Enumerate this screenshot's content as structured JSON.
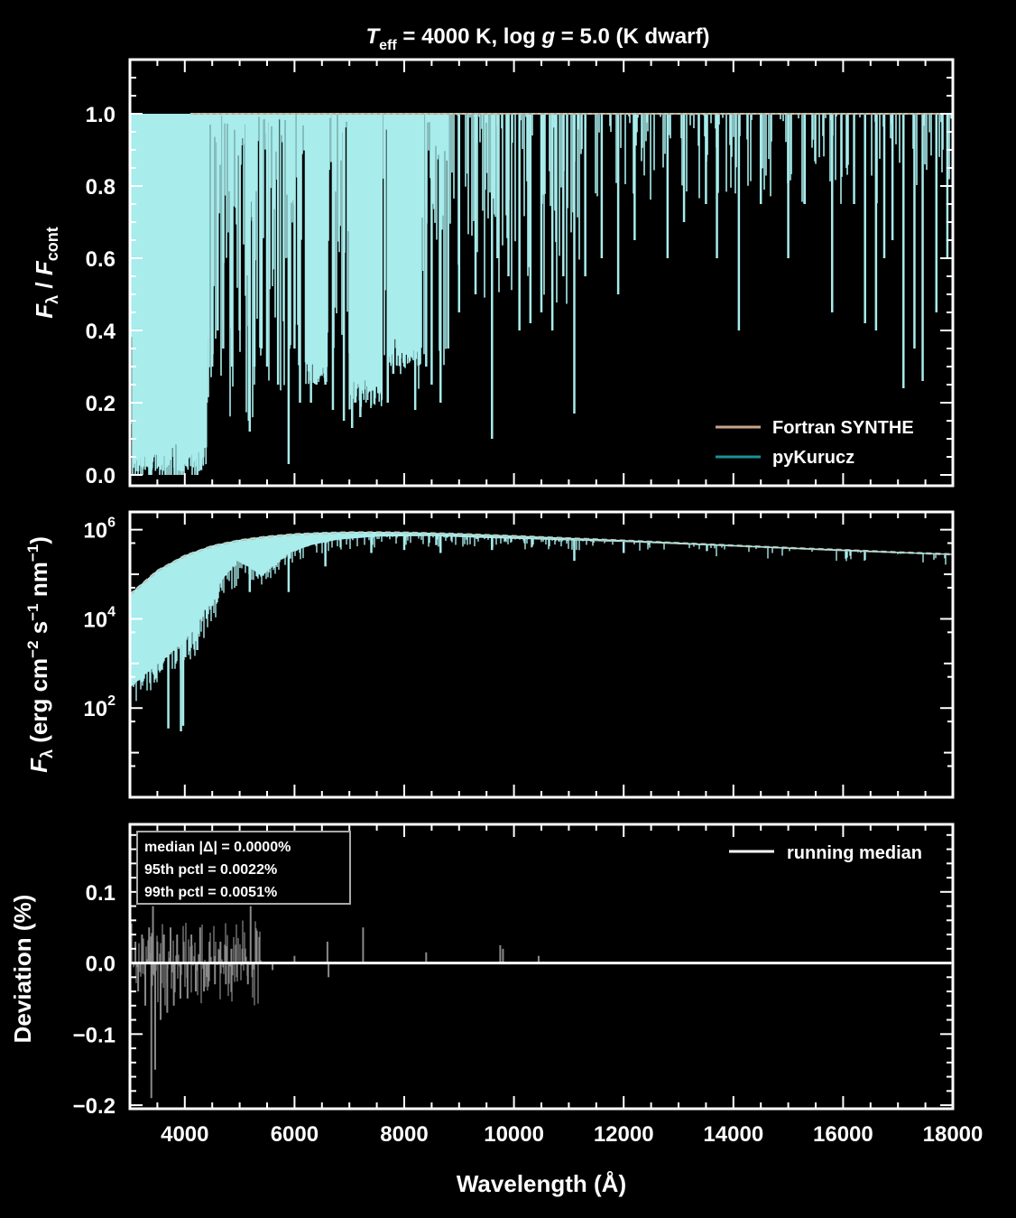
{
  "chart_data": [
    {
      "type": "line",
      "title": "T_eff = 4000 K,  log g = 5.0 (K dwarf)",
      "title_parts": {
        "t_sym": "T",
        "t_sub": "eff",
        "eq1": " = 4000 K,  log ",
        "g_sym": "g",
        "eq2": " = 5.0 (K dwarf)"
      },
      "xlabel": "",
      "ylabel": "Fλ / Fcont",
      "ylabel_parts": {
        "f1": "F",
        "lam1": "λ",
        "slash": " / ",
        "f2": "F",
        "cont": "cont"
      },
      "xlim": [
        3000,
        18000
      ],
      "ylim": [
        -0.03,
        1.15
      ],
      "yticks": [
        {
          "v": 0.0,
          "label": "0.0"
        },
        {
          "v": 0.2,
          "label": "0.2"
        },
        {
          "v": 0.4,
          "label": "0.4"
        },
        {
          "v": 0.6,
          "label": "0.6"
        },
        {
          "v": 0.8,
          "label": "0.8"
        },
        {
          "v": 1.0,
          "label": "1.0"
        }
      ],
      "legend_position": "lower-right",
      "series": [
        {
          "name": "Fortran SYNTHE",
          "color": "#c9a48c"
        },
        {
          "name": "pyKurucz",
          "color": "#1f8f99"
        }
      ],
      "fill_color": "#a8ecec",
      "continuum": 1.0,
      "deep_lines": [
        {
          "x": 3060,
          "y": 0.02
        },
        {
          "x": 3150,
          "y": 0.01
        },
        {
          "x": 3250,
          "y": 0.05
        },
        {
          "x": 3400,
          "y": 0.02
        },
        {
          "x": 3520,
          "y": 0.03
        },
        {
          "x": 3650,
          "y": 0.02
        },
        {
          "x": 3700,
          "y": 0.4
        },
        {
          "x": 3800,
          "y": 0.05
        },
        {
          "x": 3934,
          "y": 0.01
        },
        {
          "x": 3968,
          "y": 0.01
        },
        {
          "x": 4100,
          "y": 0.05
        },
        {
          "x": 4227,
          "y": 0.0
        },
        {
          "x": 4300,
          "y": 0.03
        },
        {
          "x": 4400,
          "y": 0.2
        },
        {
          "x": 4500,
          "y": 0.3
        },
        {
          "x": 4600,
          "y": 0.4
        },
        {
          "x": 4700,
          "y": 0.35
        },
        {
          "x": 4861,
          "y": 0.3
        },
        {
          "x": 5000,
          "y": 0.4
        },
        {
          "x": 5167,
          "y": 0.15
        },
        {
          "x": 5184,
          "y": 0.12
        },
        {
          "x": 5270,
          "y": 0.3
        },
        {
          "x": 5400,
          "y": 0.35
        },
        {
          "x": 5500,
          "y": 0.3
        },
        {
          "x": 5700,
          "y": 0.25
        },
        {
          "x": 5893,
          "y": 0.03
        },
        {
          "x": 6000,
          "y": 0.35
        },
        {
          "x": 6100,
          "y": 0.2
        },
        {
          "x": 6300,
          "y": 0.2
        },
        {
          "x": 6400,
          "y": 0.25
        },
        {
          "x": 6563,
          "y": 0.25
        },
        {
          "x": 6700,
          "y": 0.18
        },
        {
          "x": 6900,
          "y": 0.15
        },
        {
          "x": 7050,
          "y": 0.13
        },
        {
          "x": 7200,
          "y": 0.16
        },
        {
          "x": 7400,
          "y": 0.25
        },
        {
          "x": 7500,
          "y": 0.25
        },
        {
          "x": 7700,
          "y": 0.2
        },
        {
          "x": 7800,
          "y": 0.28
        },
        {
          "x": 8000,
          "y": 0.3
        },
        {
          "x": 8200,
          "y": 0.18
        },
        {
          "x": 8400,
          "y": 0.3
        },
        {
          "x": 8500,
          "y": 0.25
        },
        {
          "x": 8662,
          "y": 0.2
        },
        {
          "x": 8800,
          "y": 0.35
        },
        {
          "x": 9000,
          "y": 0.45
        },
        {
          "x": 9300,
          "y": 0.5
        },
        {
          "x": 9600,
          "y": 0.1
        },
        {
          "x": 9700,
          "y": 0.6
        },
        {
          "x": 9900,
          "y": 0.55
        },
        {
          "x": 10100,
          "y": 0.4
        },
        {
          "x": 10300,
          "y": 0.42
        },
        {
          "x": 10500,
          "y": 0.45
        },
        {
          "x": 10700,
          "y": 0.4
        },
        {
          "x": 10900,
          "y": 0.55
        },
        {
          "x": 11100,
          "y": 0.17
        },
        {
          "x": 11300,
          "y": 0.55
        },
        {
          "x": 11600,
          "y": 0.6
        },
        {
          "x": 11900,
          "y": 0.5
        },
        {
          "x": 12200,
          "y": 0.65
        },
        {
          "x": 12800,
          "y": 0.6
        },
        {
          "x": 13100,
          "y": 0.7
        },
        {
          "x": 13500,
          "y": 0.75
        },
        {
          "x": 13700,
          "y": 0.6
        },
        {
          "x": 14100,
          "y": 0.4
        },
        {
          "x": 14500,
          "y": 0.75
        },
        {
          "x": 15000,
          "y": 0.6
        },
        {
          "x": 15300,
          "y": 0.75
        },
        {
          "x": 15800,
          "y": 0.45
        },
        {
          "x": 16200,
          "y": 0.75
        },
        {
          "x": 16400,
          "y": 0.42
        },
        {
          "x": 16600,
          "y": 0.4
        },
        {
          "x": 16750,
          "y": 0.6
        },
        {
          "x": 16900,
          "y": 0.65
        },
        {
          "x": 17100,
          "y": 0.24
        },
        {
          "x": 17300,
          "y": 0.35
        },
        {
          "x": 17450,
          "y": 0.26
        },
        {
          "x": 17700,
          "y": 0.45
        },
        {
          "x": 17900,
          "y": 0.6
        }
      ]
    },
    {
      "type": "line",
      "title": "",
      "xlabel": "",
      "ylabel": "Fλ (erg cm−2 s−1 nm−1)",
      "ylabel_parts": {
        "f": "F",
        "lam": "λ",
        "u1": " (erg cm",
        "e1": "−2",
        "u2": " s",
        "e2": "−1",
        "u3": " nm",
        "e3": "−1",
        "u4": ")"
      },
      "xlim": [
        3000,
        18000
      ],
      "ylim": [
        1,
        2500000
      ],
      "yscale": "log",
      "yticks": [
        {
          "v": 100,
          "base": "10",
          "exp": "2"
        },
        {
          "v": 10000,
          "base": "10",
          "exp": "4"
        },
        {
          "v": 1000000,
          "base": "10",
          "exp": "6"
        }
      ],
      "series": [
        {
          "name": "Fortran SYNTHE",
          "color": "#c9a48c"
        },
        {
          "name": "pyKurucz",
          "color": "#1f8f99"
        }
      ],
      "fill_color": "#a8ecec",
      "continuum": [
        {
          "x": 3000,
          "y": 35000
        },
        {
          "x": 3500,
          "y": 120000
        },
        {
          "x": 4000,
          "y": 260000
        },
        {
          "x": 4500,
          "y": 430000
        },
        {
          "x": 5000,
          "y": 580000
        },
        {
          "x": 5500,
          "y": 700000
        },
        {
          "x": 6000,
          "y": 790000
        },
        {
          "x": 6500,
          "y": 840000
        },
        {
          "x": 7000,
          "y": 870000
        },
        {
          "x": 7500,
          "y": 870000
        },
        {
          "x": 8000,
          "y": 860000
        },
        {
          "x": 9000,
          "y": 800000
        },
        {
          "x": 10000,
          "y": 720000
        },
        {
          "x": 11000,
          "y": 640000
        },
        {
          "x": 12000,
          "y": 570000
        },
        {
          "x": 13000,
          "y": 500000
        },
        {
          "x": 14000,
          "y": 440000
        },
        {
          "x": 15000,
          "y": 390000
        },
        {
          "x": 16000,
          "y": 350000
        },
        {
          "x": 17000,
          "y": 310000
        },
        {
          "x": 18000,
          "y": 280000
        }
      ],
      "lower_envelope": [
        {
          "x": 3000,
          "y": 2
        },
        {
          "x": 3020,
          "y": 300
        },
        {
          "x": 3300,
          "y": 600
        },
        {
          "x": 3600,
          "y": 1200
        },
        {
          "x": 3900,
          "y": 2600
        },
        {
          "x": 4200,
          "y": 6000
        },
        {
          "x": 4400,
          "y": 20000
        },
        {
          "x": 4700,
          "y": 80000
        },
        {
          "x": 4950,
          "y": 200000
        },
        {
          "x": 5200,
          "y": 140000
        },
        {
          "x": 5400,
          "y": 90000
        },
        {
          "x": 5600,
          "y": 150000
        },
        {
          "x": 5900,
          "y": 300000
        },
        {
          "x": 6300,
          "y": 450000
        },
        {
          "x": 6800,
          "y": 600000
        },
        {
          "x": 7500,
          "y": 700000
        },
        {
          "x": 8500,
          "y": 720000
        },
        {
          "x": 9500,
          "y": 650000
        },
        {
          "x": 10500,
          "y": 600000
        },
        {
          "x": 12000,
          "y": 530000
        },
        {
          "x": 14000,
          "y": 420000
        },
        {
          "x": 16000,
          "y": 330000
        },
        {
          "x": 18000,
          "y": 270000
        }
      ],
      "deep_lines": [
        {
          "x": 3700,
          "y": 35
        },
        {
          "x": 3930,
          "y": 30
        },
        {
          "x": 3970,
          "y": 40
        },
        {
          "x": 4227,
          "y": 2000
        },
        {
          "x": 4400,
          "y": 10000
        },
        {
          "x": 5184,
          "y": 40000
        },
        {
          "x": 5893,
          "y": 40000
        },
        {
          "x": 6563,
          "y": 150000
        },
        {
          "x": 7400,
          "y": 300000
        },
        {
          "x": 8000,
          "y": 350000
        },
        {
          "x": 8662,
          "y": 300000
        },
        {
          "x": 9600,
          "y": 350000
        },
        {
          "x": 11100,
          "y": 200000
        },
        {
          "x": 12000,
          "y": 300000
        }
      ]
    },
    {
      "type": "line",
      "title": "",
      "xlabel": "Wavelength (Å)",
      "ylabel": "Deviation (%)",
      "xlim": [
        3000,
        18000
      ],
      "ylim": [
        -0.205,
        0.195
      ],
      "xticks": [
        {
          "v": 4000,
          "label": "4000"
        },
        {
          "v": 6000,
          "label": "6000"
        },
        {
          "v": 8000,
          "label": "8000"
        },
        {
          "v": 10000,
          "label": "10000"
        },
        {
          "v": 12000,
          "label": "12000"
        },
        {
          "v": 14000,
          "label": "14000"
        },
        {
          "v": 16000,
          "label": "16000"
        },
        {
          "v": 18000,
          "label": "18000"
        }
      ],
      "yticks": [
        {
          "v": -0.2,
          "label": "−0.2"
        },
        {
          "v": -0.1,
          "label": "−0.1"
        },
        {
          "v": 0.0,
          "label": "0.0"
        },
        {
          "v": 0.1,
          "label": "0.1"
        }
      ],
      "legend_position": "top-right",
      "series": [
        {
          "name": "running median",
          "color": "#ffffff",
          "value": 0.0
        }
      ],
      "deviation_color": "#8a8a8a",
      "stats": [
        {
          "label": "median |Δ| = 0.0000%"
        },
        {
          "label": "95th pctl = 0.0022%"
        },
        {
          "label": "99th pctl = 0.0051%"
        }
      ],
      "spikes": [
        {
          "x": 3100,
          "y": 0.03
        },
        {
          "x": 3150,
          "y": -0.04
        },
        {
          "x": 3220,
          "y": 0.04
        },
        {
          "x": 3280,
          "y": -0.06
        },
        {
          "x": 3350,
          "y": 0.05
        },
        {
          "x": 3390,
          "y": -0.19
        },
        {
          "x": 3420,
          "y": 0.08
        },
        {
          "x": 3460,
          "y": -0.15
        },
        {
          "x": 3500,
          "y": 0.03
        },
        {
          "x": 3560,
          "y": -0.08
        },
        {
          "x": 3620,
          "y": 0.04
        },
        {
          "x": 3680,
          "y": -0.07
        },
        {
          "x": 3740,
          "y": 0.05
        },
        {
          "x": 3800,
          "y": -0.06
        },
        {
          "x": 3860,
          "y": 0.04
        },
        {
          "x": 3920,
          "y": -0.05
        },
        {
          "x": 3980,
          "y": 0.03
        },
        {
          "x": 4050,
          "y": -0.05
        },
        {
          "x": 4120,
          "y": 0.04
        },
        {
          "x": 4200,
          "y": -0.04
        },
        {
          "x": 4280,
          "y": 0.05
        },
        {
          "x": 4350,
          "y": -0.04
        },
        {
          "x": 4450,
          "y": 0.03
        },
        {
          "x": 4550,
          "y": -0.03
        },
        {
          "x": 4650,
          "y": 0.03
        },
        {
          "x": 4750,
          "y": -0.03
        },
        {
          "x": 4850,
          "y": 0.02
        },
        {
          "x": 4950,
          "y": -0.02
        },
        {
          "x": 5050,
          "y": 0.02
        },
        {
          "x": 5150,
          "y": -0.03
        },
        {
          "x": 5200,
          "y": 0.08
        },
        {
          "x": 5230,
          "y": -0.02
        },
        {
          "x": 5300,
          "y": 0.02
        },
        {
          "x": 5600,
          "y": -0.01
        },
        {
          "x": 6000,
          "y": 0.01
        },
        {
          "x": 6600,
          "y": 0.03
        },
        {
          "x": 6620,
          "y": -0.02
        },
        {
          "x": 7250,
          "y": 0.05
        },
        {
          "x": 8400,
          "y": 0.015
        },
        {
          "x": 9750,
          "y": 0.025
        },
        {
          "x": 9800,
          "y": 0.02
        },
        {
          "x": 10450,
          "y": 0.01
        }
      ]
    }
  ]
}
